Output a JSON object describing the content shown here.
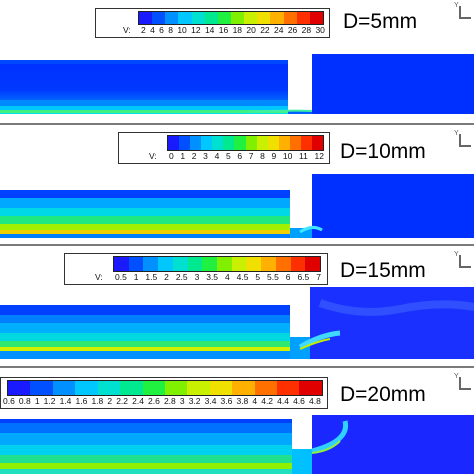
{
  "palette": [
    "#1a1aff",
    "#0050ff",
    "#0090ff",
    "#00c8ff",
    "#00e0d0",
    "#00e890",
    "#20f040",
    "#80f000",
    "#c8f000",
    "#f0e000",
    "#ffb000",
    "#ff7000",
    "#ff3000",
    "#e00000"
  ],
  "panels": [
    {
      "label": "D=5mm",
      "legend_var": "V:",
      "legend_ticks": [
        "2",
        "4",
        "6",
        "8",
        "10",
        "12",
        "14",
        "16",
        "18",
        "20",
        "22",
        "24",
        "26",
        "28",
        "30"
      ]
    },
    {
      "label": "D=10mm",
      "legend_var": "V:",
      "legend_ticks": [
        "0",
        "1",
        "2",
        "3",
        "4",
        "5",
        "6",
        "7",
        "8",
        "9",
        "10",
        "11",
        "12"
      ]
    },
    {
      "label": "D=15mm",
      "legend_var": "V:",
      "legend_ticks": [
        "0.5",
        "1",
        "1.5",
        "2",
        "2.5",
        "3",
        "3.5",
        "4",
        "4.5",
        "5",
        "5.5",
        "6",
        "6.5",
        "7"
      ]
    },
    {
      "label": "D=20mm",
      "legend_var": "V:",
      "legend_ticks": [
        "0.6",
        "0.8",
        "1",
        "1.2",
        "1.4",
        "1.6",
        "1.8",
        "2",
        "2.2",
        "2.4",
        "2.6",
        "2.8",
        "3",
        "3.2",
        "3.4",
        "3.6",
        "3.8",
        "4",
        "4.2",
        "4.4",
        "4.6",
        "4.8"
      ]
    }
  ]
}
